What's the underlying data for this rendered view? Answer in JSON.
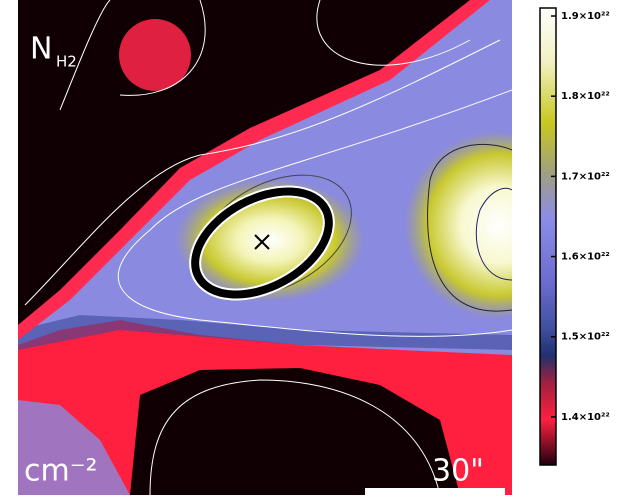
{
  "map": {
    "species": "N",
    "species_subscript": "H2",
    "unit": "cm⁻²",
    "scale_label": "30\""
  },
  "colorbar": {
    "lim": [
      1.34e+22,
      1.91e+22
    ],
    "ticks": [
      {
        "value": 1.9e+22,
        "label": "1.9×10²²"
      },
      {
        "value": 1.8e+22,
        "label": "1.8×10²²"
      },
      {
        "value": 1.7e+22,
        "label": "1.7×10²²"
      },
      {
        "value": 1.6e+22,
        "label": "1.6×10²²"
      },
      {
        "value": 1.5e+22,
        "label": "1.5×10²²"
      },
      {
        "value": 1.4e+22,
        "label": "1.4×10²²"
      }
    ]
  }
}
